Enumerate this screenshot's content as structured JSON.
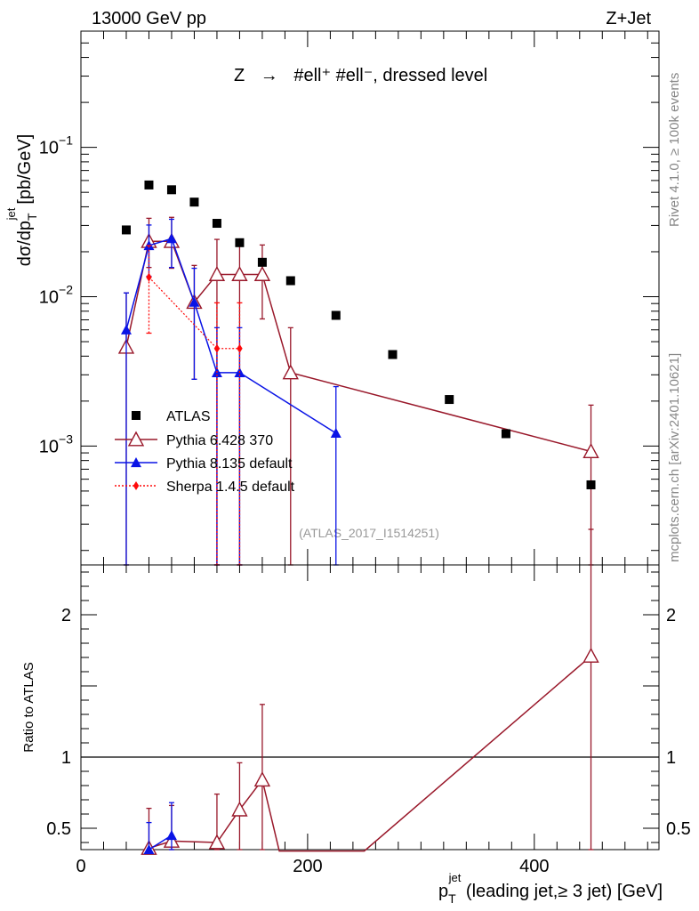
{
  "header": {
    "left": "13000 GeV pp",
    "right": "Z+Jet"
  },
  "side_labels": {
    "rivet": "Rivet 4.1.0, ≥ 100k events",
    "mcplots": "mcplots.cern.ch [arXiv:2401.10621]"
  },
  "analysis_id": "(ATLAS_2017_I1514251)",
  "colors": {
    "atlas": "#000000",
    "pythia6": "#99182a",
    "pythia8": "#0a14e6",
    "sherpa": "#ff0a0a"
  },
  "chart_data": [
    {
      "type": "scatter",
      "name": "main",
      "title_parts": {
        "lhs": "Z",
        "arrow": "→",
        "rhs": "#ell⁺ #ell⁻, dressed level"
      },
      "ylabel": {
        "main": "dσ/dp",
        "sub": "T",
        "sup": "jet",
        "unit": "[pb/GeV]"
      },
      "yscale": "log",
      "xlim": [
        0,
        510
      ],
      "ylim": [
        0.00016,
        0.6
      ],
      "y_ticks": [
        {
          "v": 0.1,
          "base": "10",
          "exp": "−1"
        },
        {
          "v": 0.01,
          "base": "10",
          "exp": "−2"
        },
        {
          "v": 0.001,
          "base": "10",
          "exp": "−3"
        }
      ],
      "legend": {
        "position": "left-lower",
        "entries": [
          "ATLAS",
          "Pythia 6.428 370",
          "Pythia 8.135 default",
          "Sherpa 1.4.5 default"
        ]
      },
      "series": [
        {
          "name": "ATLAS",
          "marker": "square",
          "x": [
            40,
            60,
            80,
            100,
            120,
            140,
            160,
            185,
            225,
            275,
            325,
            375,
            450
          ],
          "y": [
            0.028,
            0.056,
            0.052,
            0.043,
            0.031,
            0.023,
            0.017,
            0.0128,
            0.0075,
            0.0041,
            0.00205,
            0.00121,
            0.00055
          ]
        },
        {
          "name": "Pythia 6.428 370",
          "marker": "open-triangle",
          "x": [
            40,
            60,
            80,
            100,
            120,
            140,
            160,
            185,
            450
          ],
          "y": [
            0.0046,
            0.0235,
            0.0235,
            0.0092,
            0.0141,
            0.0141,
            0.0141,
            0.0031,
            0.00092
          ],
          "err_hi": [
            0.0106,
            0.0335,
            0.034,
            0.0162,
            0.0242,
            0.0242,
            0.0222,
            0.0062,
            0.00188
          ],
          "err_lo": [
            0.00016,
            0.0157,
            0.0155,
            0.0028,
            0.00016,
            0.00016,
            0.0071,
            0.00016,
            0.00016
          ]
        },
        {
          "name": "Pythia 8.135 default",
          "marker": "filled-triangle",
          "x": [
            40,
            60,
            80,
            100,
            120,
            140,
            225
          ],
          "y": [
            0.006,
            0.022,
            0.0245,
            0.0092,
            0.0031,
            0.0031,
            0.00122
          ],
          "err_hi": [
            0.0106,
            0.0302,
            0.033,
            0.0155,
            0.0062,
            0.0062,
            0.0025
          ],
          "err_lo": [
            0.00016,
            0.0137,
            0.0157,
            0.0028,
            0.00016,
            0.00016,
            0.00016
          ]
        },
        {
          "name": "Sherpa 1.4.5 default",
          "marker": "diamond",
          "x": [
            60,
            120,
            140
          ],
          "y": [
            0.0135,
            0.0045,
            0.0045
          ],
          "err_hi": [
            0.022,
            0.0091,
            0.0091
          ],
          "err_lo": [
            0.0057,
            0.00016,
            0.00016
          ]
        }
      ]
    },
    {
      "type": "scatter",
      "name": "ratio",
      "ylabel": "Ratio to ATLAS",
      "xlabel": {
        "pt": "p",
        "sub": "T",
        "sup": "jet",
        "rest": " (leading jet,≥ 3 jet) [GeV]"
      },
      "xlim": [
        0,
        510
      ],
      "ylim": [
        0.35,
        2.35
      ],
      "x_ticks": [
        0,
        200,
        400
      ],
      "y_ticks": [
        0.5,
        1,
        2
      ],
      "ref_line": 1,
      "series": [
        {
          "name": "Pythia 6.428 370",
          "x": [
            60,
            80,
            120,
            140,
            160,
            175,
            250,
            450
          ],
          "y": [
            0.36,
            0.41,
            0.4,
            0.63,
            0.84,
            0.34,
            0.34,
            1.71
          ],
          "err_hi": [
            0.64,
            0.66,
            0.74,
            0.96,
            1.37,
            null,
            null,
            2.6
          ],
          "err_lo": [
            0.35,
            0.35,
            0.35,
            0.35,
            0.35,
            null,
            null,
            0.35
          ]
        },
        {
          "name": "Pythia 8.135 default",
          "x": [
            60,
            80
          ],
          "y": [
            0.35,
            0.45
          ],
          "err_hi": [
            0.54,
            0.68
          ],
          "err_lo": [
            0.35,
            0.35
          ]
        }
      ]
    }
  ]
}
